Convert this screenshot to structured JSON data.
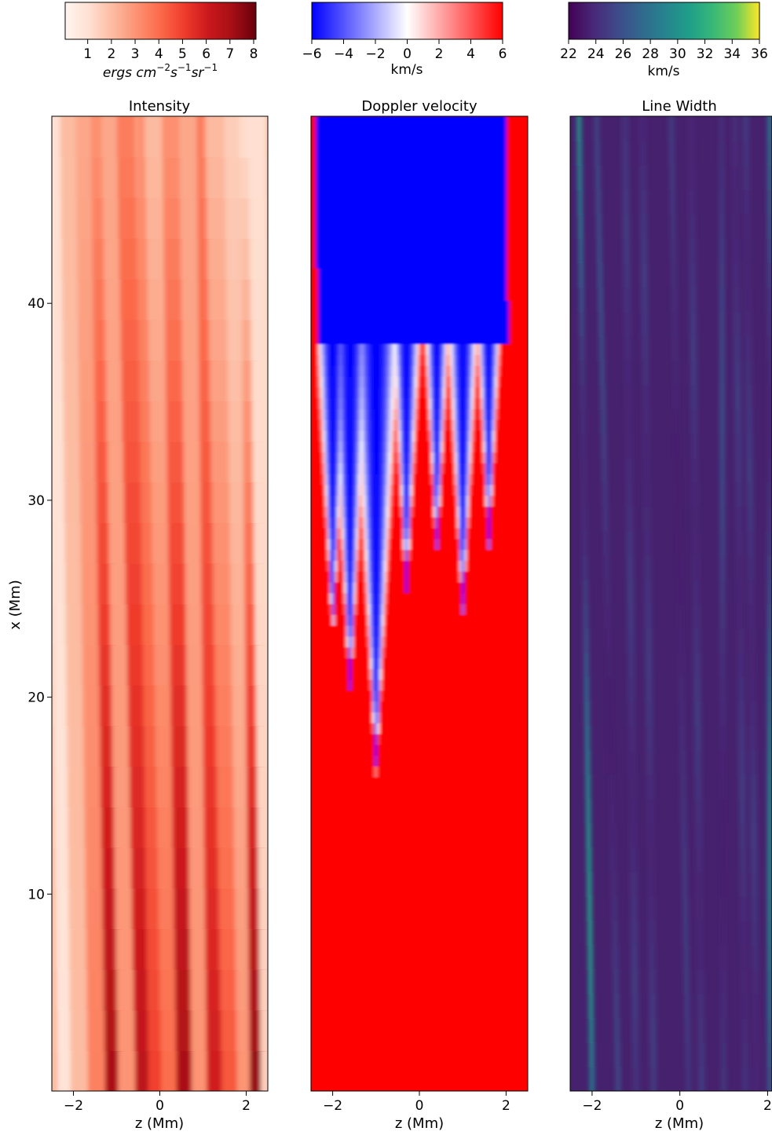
{
  "figure": {
    "colorbars": [
      {
        "id": "intensity",
        "ticks": [
          "1",
          "2",
          "3",
          "4",
          "5",
          "6",
          "7",
          "8"
        ],
        "tick_values": [
          1,
          2,
          3,
          4,
          5,
          6,
          7,
          8
        ],
        "range": [
          0.05,
          8.1
        ],
        "label_main": "ergs cm",
        "label_parts": [
          {
            "t": "ergs cm",
            "sup": false
          },
          {
            "t": "−2",
            "sup": true
          },
          {
            "t": "s",
            "sup": false
          },
          {
            "t": "−1",
            "sup": true
          },
          {
            "t": "sr",
            "sup": false
          },
          {
            "t": "−1",
            "sup": true
          }
        ],
        "colormap": "Reds"
      },
      {
        "id": "doppler",
        "ticks": [
          "−6",
          "−4",
          "−2",
          "0",
          "2",
          "4",
          "6"
        ],
        "tick_values": [
          -6,
          -4,
          -2,
          0,
          2,
          4,
          6
        ],
        "range": [
          -6,
          6
        ],
        "label": "km/s",
        "colormap": "bwr"
      },
      {
        "id": "width",
        "ticks": [
          "22",
          "24",
          "26",
          "28",
          "30",
          "32",
          "34",
          "36"
        ],
        "tick_values": [
          22,
          24,
          26,
          28,
          30,
          32,
          34,
          36
        ],
        "range": [
          22,
          36
        ],
        "label": "km/s",
        "colormap": "viridis"
      }
    ],
    "panels": [
      {
        "id": "intensity",
        "title": "Intensity",
        "xlabel": "z (Mm)",
        "xticks": [
          "−2",
          "0",
          "2"
        ]
      },
      {
        "id": "doppler",
        "title": "Doppler velocity",
        "xlabel": "z (Mm)",
        "xticks": [
          "−2",
          "0",
          "2"
        ]
      },
      {
        "id": "width",
        "title": "Line Width",
        "xlabel": "z (Mm)",
        "xticks": [
          "−2",
          "0",
          "2"
        ]
      }
    ],
    "ylabel": "x (Mm)",
    "yticks": [
      "10",
      "20",
      "30",
      "40"
    ]
  },
  "chart_data": [
    {
      "type": "heatmap",
      "title": "Intensity",
      "xlabel": "z (Mm)",
      "ylabel": "x (Mm)",
      "xlim": [
        -2.5,
        2.5
      ],
      "ylim": [
        0,
        49.5
      ],
      "colorbar_range": [
        0,
        8.1
      ],
      "colorbar_label": "ergs cm^-2 s^-1 sr^-1",
      "colormap": "Reds",
      "columns": {
        "z": [
          -2.3,
          -2.0,
          -1.6,
          -1.2,
          -0.9,
          -0.5,
          -0.2,
          0.1,
          0.45,
          0.8,
          1.15,
          1.5,
          1.85,
          2.15,
          2.4
        ],
        "values_at_x_bottom": [
          0.8,
          2.0,
          3.5,
          7.0,
          3.0,
          6.5,
          5.0,
          4.0,
          7.0,
          3.0,
          6.0,
          4.5,
          3.0,
          7.5,
          1.5
        ],
        "values_at_x_top": [
          1.0,
          2.0,
          2.5,
          3.0,
          2.5,
          3.5,
          3.0,
          2.0,
          3.0,
          2.5,
          3.5,
          2.0,
          1.5,
          1.0,
          1.0
        ],
        "slope_z_per_x": [
          0.006,
          0.005,
          0.006,
          0.007,
          0.008,
          0.009,
          0.006,
          0.008,
          0.007,
          0.006,
          0.005,
          0.008,
          0.006,
          0.005,
          0.006
        ]
      }
    },
    {
      "type": "heatmap",
      "title": "Doppler velocity",
      "xlabel": "z (Mm)",
      "xlim": [
        -2.5,
        2.5
      ],
      "ylim": [
        0,
        49.5
      ],
      "colorbar_range": [
        -6,
        6
      ],
      "colorbar_label": "km/s",
      "colormap": "bwr",
      "blueshift_spikes": [
        {
          "z": -1.0,
          "x_tip": 16.0
        },
        {
          "z": -1.6,
          "x_tip": 20.0
        },
        {
          "z": -2.0,
          "x_tip": 23.0
        },
        {
          "z": -0.3,
          "x_tip": 25.0
        },
        {
          "z": 0.4,
          "x_tip": 27.0
        },
        {
          "z": 1.0,
          "x_tip": 24.0
        },
        {
          "z": 1.6,
          "x_tip": 27.5
        }
      ],
      "upper_region_value": -6,
      "lower_region_value": 6,
      "edge_redshift_z": [
        -2.5,
        2.0
      ]
    },
    {
      "type": "heatmap",
      "title": "Line Width",
      "xlabel": "z (Mm)",
      "xlim": [
        -2.5,
        2.1
      ],
      "ylim": [
        0,
        49.5
      ],
      "colorbar_range": [
        22,
        36
      ],
      "colorbar_label": "km/s",
      "colormap": "viridis",
      "background_value": 23,
      "bright_streaks": [
        {
          "z_bottom": -2.0,
          "z_top": -2.3,
          "peak": 31
        },
        {
          "z_bottom": -1.4,
          "z_top": -1.9,
          "peak": 26
        },
        {
          "z_bottom": 0.2,
          "z_top": -0.2,
          "peak": 25
        },
        {
          "z_bottom": 1.0,
          "z_top": 0.95,
          "peak": 26
        },
        {
          "z_bottom": 2.05,
          "z_top": 2.05,
          "peak": 30
        }
      ]
    }
  ]
}
